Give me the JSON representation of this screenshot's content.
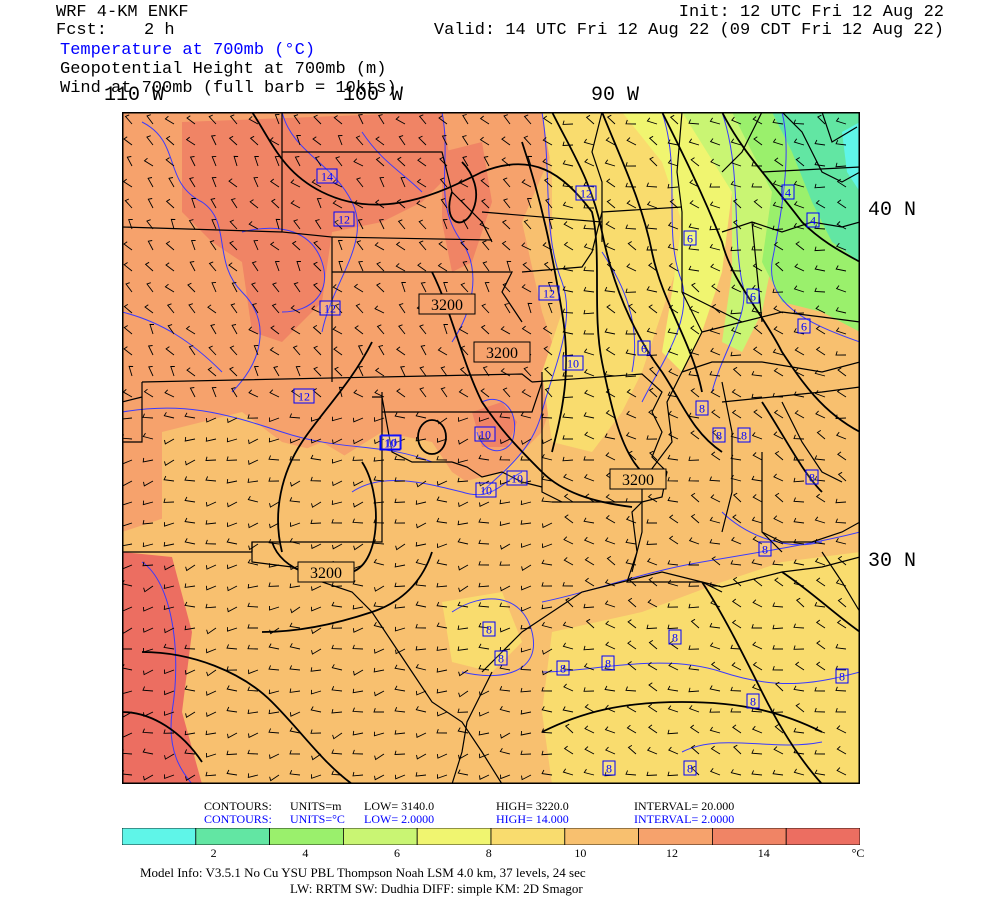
{
  "header": {
    "model": "WRF 4-KM ENKF",
    "fcst_label": "Fcst:",
    "fcst_value": "2 h",
    "init": "Init: 12 UTC Fri 12 Aug 22",
    "valid": "Valid: 14 UTC Fri 12 Aug 22 (09 CDT Fri 12 Aug 22)",
    "field1": "Temperature at 700mb (°C)",
    "field2": "Geopotential Height at 700mb (m)",
    "field3": "Wind at 700mb (full barb = 10kts)"
  },
  "axes": {
    "lon_110": "110 W",
    "lon_100": "100 W",
    "lon_90": "90 W",
    "lat_40": "40 N",
    "lat_30": "30 N"
  },
  "height_labels": [
    "3200",
    "3200",
    "3200",
    "3200"
  ],
  "temp_labels": [
    "14",
    "12",
    "12",
    "12",
    "12",
    "10",
    "10",
    "10",
    "10",
    "12",
    "10",
    "10",
    "6",
    "6",
    "6",
    "6",
    "4",
    "4",
    "8",
    "8",
    "8",
    "8",
    "8",
    "8",
    "8",
    "8",
    "8",
    "8",
    "8",
    "8",
    "8",
    "8"
  ],
  "contour_info": {
    "h_label": "CONTOURS:",
    "h_units": "UNITS=m",
    "h_low": "LOW=  3140.0",
    "h_high": "HIGH=  3220.0",
    "h_interval": "INTERVAL=     20.000",
    "t_label": "CONTOURS:",
    "t_units": "UNITS=°C",
    "t_low": "LOW=  2.0000",
    "t_high": "HIGH=  14.000",
    "t_interval": "INTERVAL=  2.0000"
  },
  "colorbar": {
    "colors": [
      "#5ff5e8",
      "#62e6a3",
      "#9af06c",
      "#c9f573",
      "#f0f570",
      "#f9dc6e",
      "#f8c06f",
      "#f6a26c",
      "#f08465",
      "#ec6e61"
    ],
    "tick_labels": [
      "2",
      "4",
      "6",
      "8",
      "10",
      "12",
      "14",
      "°C"
    ]
  },
  "footer": {
    "line1": "Model Info: V3.5.1    No Cu    YSU PBL  Thompson      Noah LSM  4.0 km,  37 levels,   24 sec",
    "line2": "LW: RRTM SW: Dudhia  DIFF: simple KM: 2D Smagor"
  }
}
